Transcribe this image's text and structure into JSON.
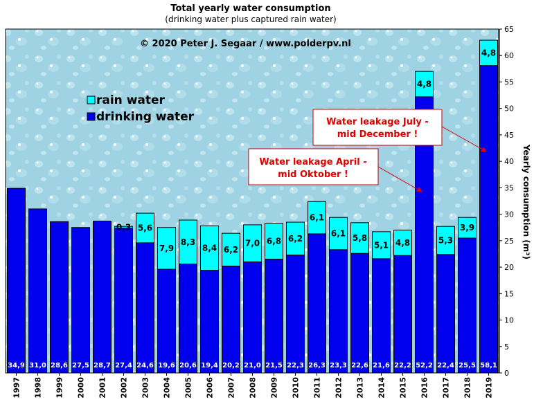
{
  "chart_data": {
    "type": "bar",
    "stacked": true,
    "title": "Total yearly water consumption",
    "subtitle": "(drinking  water plus captured rain  water)",
    "ylabel": "Yearly consumption (m³)",
    "ylim": [
      0,
      65
    ],
    "ytick_step": 5,
    "y_axis_side": "right",
    "categories": [
      "1997",
      "1998",
      "1999",
      "2000",
      "2001",
      "2002",
      "2003",
      "2004",
      "2005",
      "2006",
      "2007",
      "2008",
      "2009",
      "2010",
      "2011",
      "2012",
      "2013",
      "2014",
      "2015",
      "2016",
      "2017",
      "2018",
      "2019"
    ],
    "series": [
      {
        "name": "drinking water",
        "color": "#0000ee",
        "values": [
          34.9,
          31.0,
          28.6,
          27.5,
          28.7,
          27.4,
          24.6,
          19.6,
          20.6,
          19.4,
          20.2,
          21.0,
          21.5,
          22.3,
          26.3,
          23.3,
          22.6,
          21.6,
          22.2,
          52.2,
          22.4,
          25.5,
          58.1
        ],
        "labels": [
          "34,9",
          "31,0",
          "28,6",
          "27,5",
          "28,7",
          "27,4",
          "24,6",
          "19,6",
          "20,6",
          "19,4",
          "20,2",
          "21,0",
          "21,5",
          "22,3",
          "26,3",
          "23,3",
          "22,6",
          "21,6",
          "22,2",
          "52,2",
          "22,4",
          "25,5",
          "58,1"
        ]
      },
      {
        "name": "rain water",
        "color": "#00ffff",
        "values": [
          0,
          0,
          0,
          0,
          0,
          0.3,
          5.6,
          7.9,
          8.3,
          8.4,
          6.2,
          7.0,
          6.8,
          6.2,
          6.1,
          6.1,
          5.8,
          5.1,
          4.8,
          4.8,
          5.3,
          3.9,
          4.8
        ],
        "labels": [
          "",
          "",
          "",
          "",
          "",
          "0,3",
          "5,6",
          "7,9",
          "8,3",
          "8,4",
          "6,2",
          "7,0",
          "6,8",
          "6,2",
          "6,1",
          "6,1",
          "5,8",
          "5,1",
          "4,8",
          "4,8",
          "5,3",
          "3,9",
          "4,8"
        ]
      }
    ],
    "legend": {
      "placement": "top-left",
      "order": [
        "rain water",
        "drinking water"
      ]
    },
    "copyright": "© 2020 Peter J.  Segaar / www.polderpv.nl",
    "annotations": [
      {
        "lines": [
          "Water leakage April  -",
          "mid Oktober !"
        ],
        "target_category": "2016"
      },
      {
        "lines": [
          "Water leakage July  -",
          "mid December !"
        ],
        "target_category": "2019"
      }
    ],
    "background_color": "#9fd3e3"
  }
}
